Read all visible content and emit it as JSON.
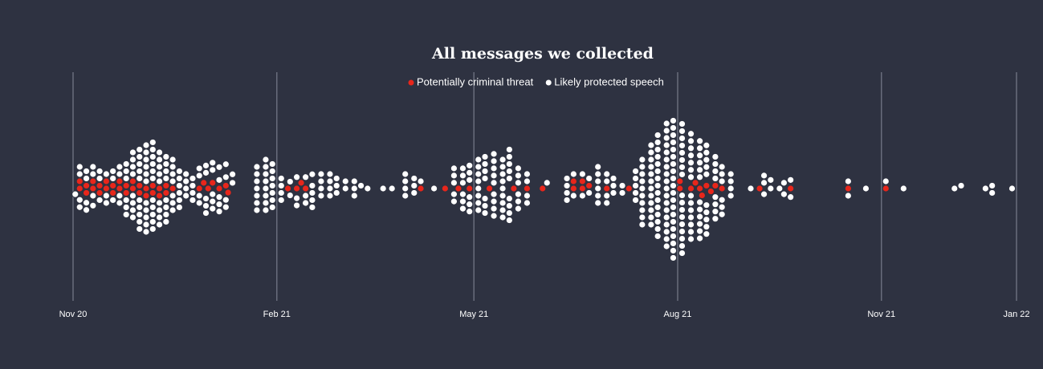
{
  "chart_data": {
    "type": "beeswarm",
    "title": "All messages we collected",
    "xlim": [
      0,
      426
    ],
    "xticks": [
      {
        "value": 0,
        "label": "Nov 20"
      },
      {
        "value": 92,
        "label": "Feb 21"
      },
      {
        "value": 181,
        "label": "May 21"
      },
      {
        "value": 273,
        "label": "Aug 21"
      },
      {
        "value": 365,
        "label": "Nov 21"
      },
      {
        "value": 426,
        "label": "Jan 22"
      }
    ],
    "grid": true,
    "legend": "top",
    "series": [
      {
        "name": "Potentially criminal threat",
        "color": "#e8261b",
        "values": [
          3,
          3,
          6,
          6,
          9,
          9,
          12,
          12,
          15,
          15,
          18,
          18,
          21,
          21,
          24,
          24,
          27,
          27,
          30,
          30,
          33,
          33,
          36,
          36,
          39,
          39,
          42,
          42,
          45,
          57,
          59,
          61,
          63,
          66,
          69,
          70,
          97,
          101,
          103,
          105,
          157,
          168,
          174,
          179,
          188,
          199,
          205,
          212,
          226,
          226,
          230,
          230,
          233,
          241,
          251,
          274,
          274,
          279,
          281,
          283,
          284,
          286,
          288,
          290,
          293,
          310,
          324,
          350,
          367
        ]
      },
      {
        "name": "Likely protected speech",
        "color": "#ffffff",
        "values": [
          1,
          3,
          3,
          3,
          3,
          6,
          6,
          6,
          6,
          9,
          9,
          9,
          9,
          12,
          12,
          12,
          15,
          15,
          15,
          18,
          18,
          18,
          21,
          21,
          21,
          21,
          24,
          24,
          24,
          24,
          24,
          24,
          27,
          27,
          27,
          27,
          27,
          27,
          27,
          27,
          30,
          30,
          30,
          30,
          30,
          30,
          30,
          30,
          30,
          30,
          33,
          33,
          33,
          33,
          33,
          33,
          33,
          33,
          33,
          33,
          33,
          36,
          36,
          36,
          36,
          36,
          36,
          36,
          36,
          36,
          36,
          36,
          39,
          39,
          39,
          39,
          39,
          39,
          39,
          39,
          39,
          42,
          42,
          42,
          42,
          42,
          42,
          42,
          42,
          45,
          45,
          45,
          45,
          45,
          45,
          45,
          48,
          48,
          48,
          48,
          48,
          48,
          51,
          51,
          51,
          51,
          54,
          54,
          54,
          54,
          57,
          57,
          57,
          57,
          60,
          60,
          60,
          60,
          60,
          63,
          63,
          63,
          63,
          63,
          66,
          66,
          66,
          66,
          66,
          69,
          69,
          69,
          69,
          72,
          72,
          83,
          83,
          83,
          83,
          83,
          83,
          83,
          87,
          87,
          87,
          87,
          87,
          87,
          87,
          87,
          90,
          90,
          90,
          90,
          90,
          90,
          90,
          94,
          94,
          94,
          94,
          98,
          98,
          101,
          101,
          101,
          105,
          105,
          105,
          108,
          108,
          108,
          108,
          108,
          112,
          112,
          112,
          112,
          116,
          116,
          116,
          116,
          119,
          119,
          119,
          123,
          123,
          127,
          127,
          127,
          130,
          133,
          140,
          144,
          150,
          150,
          150,
          150,
          154,
          154,
          154,
          157,
          163,
          172,
          172,
          172,
          172,
          172,
          176,
          176,
          176,
          176,
          176,
          176,
          179,
          179,
          179,
          179,
          179,
          179,
          183,
          183,
          183,
          183,
          183,
          183,
          183,
          183,
          186,
          186,
          186,
          186,
          186,
          186,
          186,
          190,
          190,
          190,
          190,
          190,
          190,
          190,
          190,
          190,
          194,
          194,
          194,
          194,
          194,
          194,
          194,
          194,
          194,
          197,
          197,
          197,
          197,
          197,
          197,
          197,
          197,
          197,
          201,
          201,
          201,
          201,
          201,
          201,
          205,
          205,
          205,
          205,
          214,
          223,
          223,
          223,
          223,
          226,
          226,
          230,
          230,
          233,
          233,
          237,
          237,
          237,
          237,
          237,
          237,
          241,
          241,
          241,
          241,
          244,
          244,
          244,
          248,
          248,
          254,
          254,
          254,
          254,
          254,
          257,
          257,
          257,
          257,
          257,
          257,
          257,
          257,
          257,
          257,
          261,
          261,
          261,
          261,
          261,
          261,
          261,
          261,
          261,
          261,
          261,
          261,
          264,
          264,
          264,
          264,
          264,
          264,
          264,
          264,
          264,
          264,
          264,
          264,
          264,
          264,
          264,
          268,
          268,
          268,
          268,
          268,
          268,
          268,
          268,
          268,
          268,
          268,
          268,
          268,
          268,
          268,
          268,
          268,
          268,
          271,
          271,
          271,
          271,
          271,
          271,
          271,
          271,
          271,
          271,
          271,
          271,
          271,
          271,
          271,
          271,
          271,
          271,
          271,
          271,
          275,
          275,
          275,
          275,
          275,
          275,
          275,
          275,
          275,
          275,
          275,
          275,
          275,
          275,
          275,
          275,
          275,
          279,
          279,
          279,
          279,
          279,
          279,
          279,
          279,
          279,
          279,
          279,
          279,
          279,
          279,
          283,
          283,
          283,
          283,
          283,
          283,
          283,
          283,
          283,
          283,
          283,
          283,
          286,
          286,
          286,
          286,
          286,
          286,
          286,
          286,
          286,
          286,
          290,
          290,
          290,
          290,
          290,
          290,
          290,
          290,
          293,
          293,
          293,
          293,
          293,
          293,
          297,
          297,
          297,
          297,
          306,
          312,
          312,
          312,
          315,
          315,
          319,
          321,
          321,
          324,
          324,
          350,
          350,
          358,
          367,
          375,
          398,
          401,
          412,
          415,
          415,
          424
        ]
      }
    ]
  }
}
